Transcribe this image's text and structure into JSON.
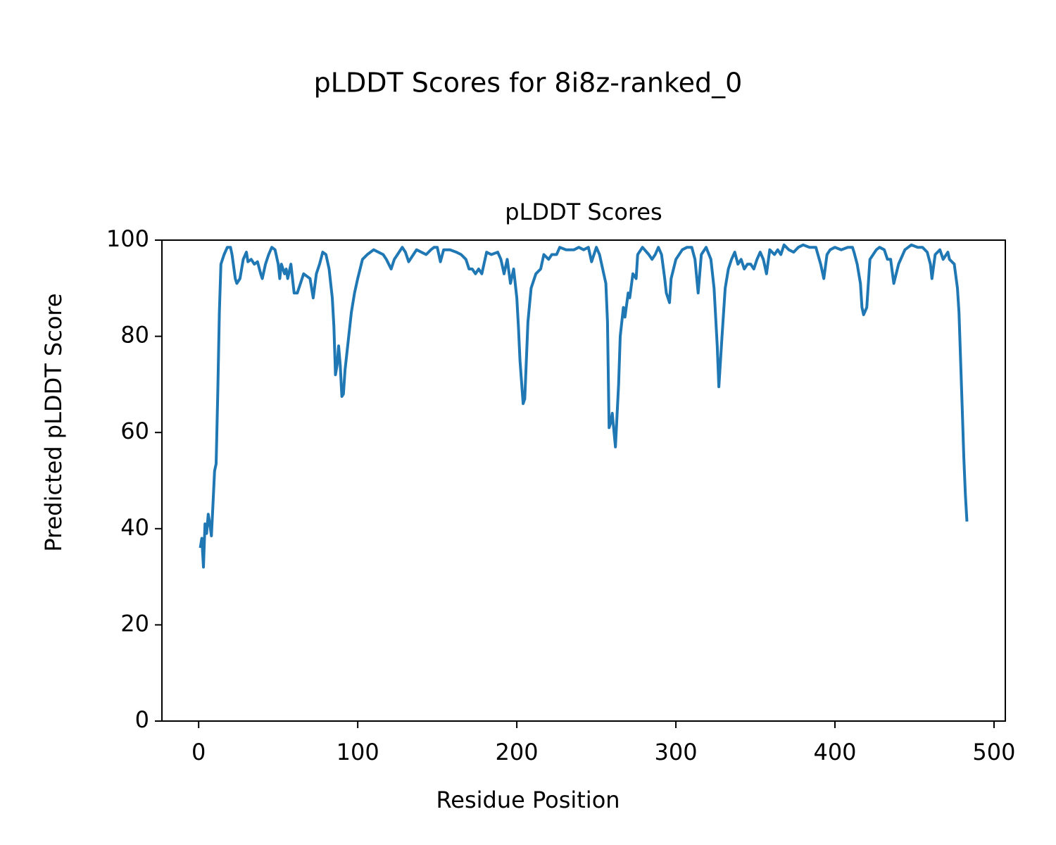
{
  "chart_data": {
    "type": "line",
    "suptitle": "pLDDT Scores for 8i8z-ranked_0",
    "title": "pLDDT Scores",
    "xlabel": "Residue Position",
    "ylabel": "Predicted pLDDT Score",
    "xlim": [
      -23.1,
      507.1
    ],
    "ylim": [
      0,
      100
    ],
    "xticks": [
      0,
      100,
      200,
      300,
      400,
      500
    ],
    "yticks": [
      0,
      20,
      40,
      60,
      80,
      100
    ],
    "grid": false,
    "series": [
      {
        "name": "pLDDT",
        "color": "#1f77b4",
        "x": [
          1,
          2,
          3,
          4,
          5,
          6,
          7,
          8,
          9,
          10,
          11,
          12,
          13,
          14,
          16,
          18,
          20,
          21,
          23,
          24,
          26,
          28,
          30,
          31,
          33,
          35,
          37,
          39,
          40,
          42,
          44,
          46,
          48,
          50,
          51,
          52,
          54,
          55,
          56,
          58,
          60,
          62,
          64,
          66,
          68,
          70,
          72,
          74,
          76,
          78,
          80,
          82,
          84,
          85,
          86,
          87,
          88,
          89,
          90,
          91,
          92,
          94,
          96,
          98,
          100,
          103,
          106,
          110,
          113,
          116,
          118,
          121,
          123,
          125,
          128,
          130,
          132,
          135,
          137,
          140,
          143,
          146,
          148,
          150,
          152,
          154,
          158,
          162,
          165,
          168,
          170,
          172,
          174,
          176,
          178,
          181,
          184,
          188,
          190,
          192,
          194,
          196,
          198,
          200,
          201,
          202,
          204,
          205,
          207,
          209,
          212,
          215,
          217,
          220,
          222,
          225,
          227,
          231,
          236,
          239,
          242,
          245,
          247,
          250,
          252,
          254,
          256,
          257,
          258,
          259,
          260,
          262,
          264,
          265,
          267,
          268,
          270,
          271,
          273,
          275,
          276,
          279,
          283,
          285,
          287,
          289,
          291,
          293,
          294,
          296,
          297,
          300,
          304,
          307,
          310,
          312,
          314,
          316,
          319,
          322,
          324,
          326,
          327,
          329,
          331,
          333,
          335,
          337,
          339,
          341,
          343,
          345,
          347,
          349,
          351,
          353,
          355,
          357,
          359,
          362,
          364,
          366,
          368,
          371,
          374,
          377,
          380,
          384,
          388,
          391,
          393,
          395,
          397,
          400,
          404,
          408,
          411,
          412,
          414,
          416,
          417,
          418,
          420,
          422,
          426,
          428,
          431,
          433,
          435,
          437,
          440,
          444,
          448,
          452,
          455,
          458,
          460,
          461,
          463,
          466,
          468,
          471,
          472,
          475,
          477,
          478,
          479,
          480,
          481,
          482,
          483
        ],
        "values": [
          36,
          38,
          32,
          41,
          39,
          43,
          41,
          38.5,
          45,
          52,
          53.5,
          68,
          85,
          95,
          97,
          98.5,
          98.5,
          97,
          92,
          91,
          92,
          96,
          97.5,
          95.5,
          96,
          95,
          95.5,
          93,
          92,
          95,
          97,
          98.5,
          98,
          95,
          92,
          95,
          93,
          94,
          92,
          95,
          89,
          89,
          91,
          93,
          92.5,
          92,
          88,
          93,
          95,
          97.5,
          97,
          94,
          88,
          82,
          72,
          74,
          78,
          74,
          67.5,
          68,
          73,
          79,
          85,
          89,
          92,
          96,
          97,
          98,
          97.5,
          97,
          96,
          94,
          96,
          97,
          98.5,
          97.5,
          95.5,
          97,
          98,
          97.5,
          97,
          98,
          98.5,
          98.5,
          95.5,
          98,
          98,
          97.5,
          97,
          96,
          94,
          94,
          93,
          94,
          93,
          97.5,
          97,
          97.5,
          96,
          93,
          96,
          91,
          94,
          88,
          82,
          75,
          66,
          67,
          83,
          90,
          93,
          94,
          97,
          96,
          97,
          97,
          98.5,
          98,
          98,
          98.5,
          98,
          98.5,
          95.5,
          98.5,
          97,
          94,
          91,
          83,
          61,
          62,
          64,
          57,
          70,
          80,
          86,
          84,
          89,
          88,
          93,
          92,
          97,
          98.5,
          97,
          96,
          97,
          98.5,
          97,
          92,
          89,
          87,
          92,
          96,
          98,
          98.5,
          98.5,
          96,
          89,
          97,
          98.5,
          96,
          90,
          78,
          69.5,
          80,
          90,
          94,
          96,
          97.5,
          95,
          96,
          94,
          95,
          95,
          94,
          96,
          97.5,
          96,
          93,
          98,
          97,
          98,
          97,
          99,
          98,
          97.5,
          98.5,
          99,
          98.5,
          98.5,
          95,
          92,
          97,
          98,
          98.5,
          98,
          98.5,
          98.5,
          97.5,
          95,
          91,
          86,
          84.5,
          86,
          96,
          98,
          98.5,
          98,
          96,
          96,
          91,
          95,
          98,
          99,
          98.5,
          98.5,
          97.5,
          95,
          92,
          97,
          98,
          96,
          97.5,
          96,
          95,
          90,
          85,
          75,
          65,
          55,
          47,
          41.5
        ]
      }
    ]
  }
}
